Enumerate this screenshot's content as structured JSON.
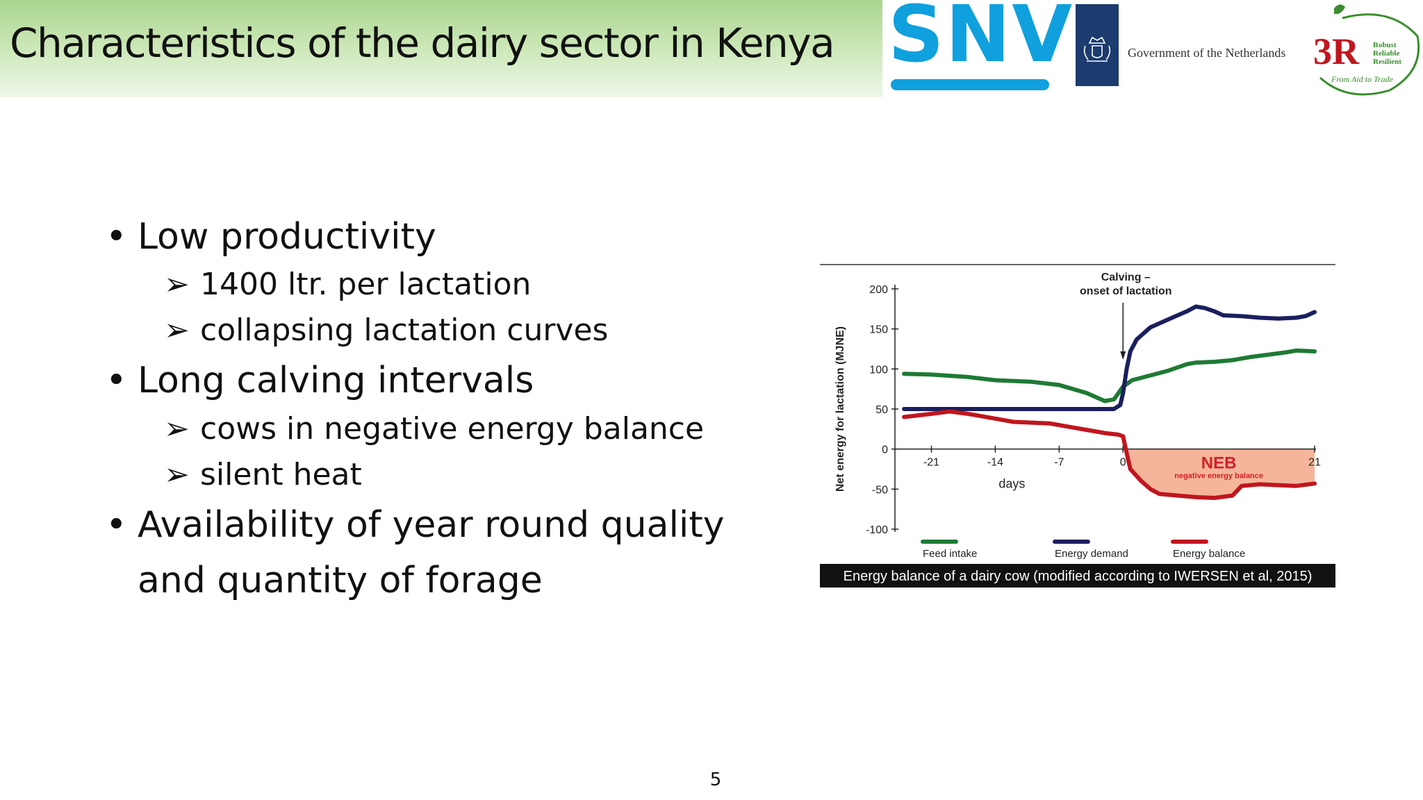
{
  "slide": {
    "title": "Characteristics of the dairy sector in Kenya",
    "page_number": "5"
  },
  "logos": {
    "snv": "SNV",
    "netherlands": "Government of the Netherlands",
    "threer": {
      "main": "3R",
      "lines": [
        "Robust",
        "Reliable",
        "Resilient"
      ],
      "tagline": "From Aid to Trade"
    }
  },
  "bullets": {
    "b1": "Low productivity",
    "b1_s1": "1400 ltr. per lactation",
    "b1_s2": "collapsing lactation curves",
    "b2": "Long calving intervals",
    "b2_s1": "cows in negative energy balance",
    "b2_s2": "silent heat",
    "b3_l1": "Availability of year round quality",
    "b3_l2": "and quantity of forage",
    "bullet_glyph": "•",
    "arrow_glyph": "➢"
  },
  "chart_data": {
    "type": "line",
    "caption": "Energy balance of a dairy cow (modified according to IWERSEN et al, 2015)",
    "xlabel": "days",
    "ylabel": "Net energy for lactation (MJNE)",
    "xlim": [
      -25,
      21
    ],
    "ylim": [
      -100,
      200
    ],
    "xticks": [
      -21,
      -14,
      -7,
      0,
      21
    ],
    "yticks": [
      200,
      150,
      100,
      50,
      0,
      -50,
      -100
    ],
    "annotation": {
      "line1": "Calving –",
      "line2": "onset of lactation",
      "x": 0
    },
    "region": {
      "label": "NEB",
      "sublabel": "negative energy balance",
      "from": 0,
      "to": 21,
      "color": "#f4b59b"
    },
    "legend_position": "bottom",
    "series": [
      {
        "name": "Feed intake",
        "color": "#1f7a34",
        "points": [
          [
            -24,
            94
          ],
          [
            -21,
            93
          ],
          [
            -17,
            90
          ],
          [
            -14,
            86
          ],
          [
            -10,
            84
          ],
          [
            -7,
            80
          ],
          [
            -4,
            70
          ],
          [
            -2,
            60
          ],
          [
            -1,
            62
          ],
          [
            0,
            78
          ],
          [
            1,
            86
          ],
          [
            3,
            92
          ],
          [
            5,
            98
          ],
          [
            7,
            106
          ],
          [
            8,
            108
          ],
          [
            10,
            109
          ],
          [
            12,
            111
          ],
          [
            14,
            115
          ],
          [
            16,
            118
          ],
          [
            18,
            121
          ],
          [
            19,
            123
          ],
          [
            21,
            122
          ]
        ]
      },
      {
        "name": "Energy demand",
        "color": "#1a1f5e",
        "points": [
          [
            -24,
            50
          ],
          [
            -21,
            50
          ],
          [
            -14,
            50
          ],
          [
            -7,
            50
          ],
          [
            -1,
            50
          ],
          [
            -0.3,
            55
          ],
          [
            0,
            70
          ],
          [
            0.4,
            100
          ],
          [
            0.8,
            122
          ],
          [
            1.5,
            137
          ],
          [
            3,
            152
          ],
          [
            5,
            162
          ],
          [
            7,
            172
          ],
          [
            8,
            178
          ],
          [
            9,
            176
          ],
          [
            10,
            172
          ],
          [
            11,
            167
          ],
          [
            13,
            166
          ],
          [
            15,
            164
          ],
          [
            17,
            163
          ],
          [
            19,
            164
          ],
          [
            20,
            166
          ],
          [
            21,
            171
          ]
        ]
      },
      {
        "name": "Energy balance",
        "color": "#c0161e",
        "points": [
          [
            -24,
            40
          ],
          [
            -21,
            44
          ],
          [
            -19,
            47
          ],
          [
            -17,
            44
          ],
          [
            -14,
            38
          ],
          [
            -12,
            34
          ],
          [
            -10,
            33
          ],
          [
            -8,
            32
          ],
          [
            -6,
            28
          ],
          [
            -4,
            24
          ],
          [
            -2,
            20
          ],
          [
            -0.5,
            18
          ],
          [
            0,
            16
          ],
          [
            0.4,
            -5
          ],
          [
            0.8,
            -25
          ],
          [
            2,
            -40
          ],
          [
            3,
            -50
          ],
          [
            4,
            -56
          ],
          [
            6,
            -58
          ],
          [
            8,
            -60
          ],
          [
            10,
            -61
          ],
          [
            12,
            -58
          ],
          [
            13,
            -46
          ],
          [
            15,
            -44
          ],
          [
            17,
            -45
          ],
          [
            19,
            -46
          ],
          [
            21,
            -43
          ]
        ]
      }
    ]
  }
}
